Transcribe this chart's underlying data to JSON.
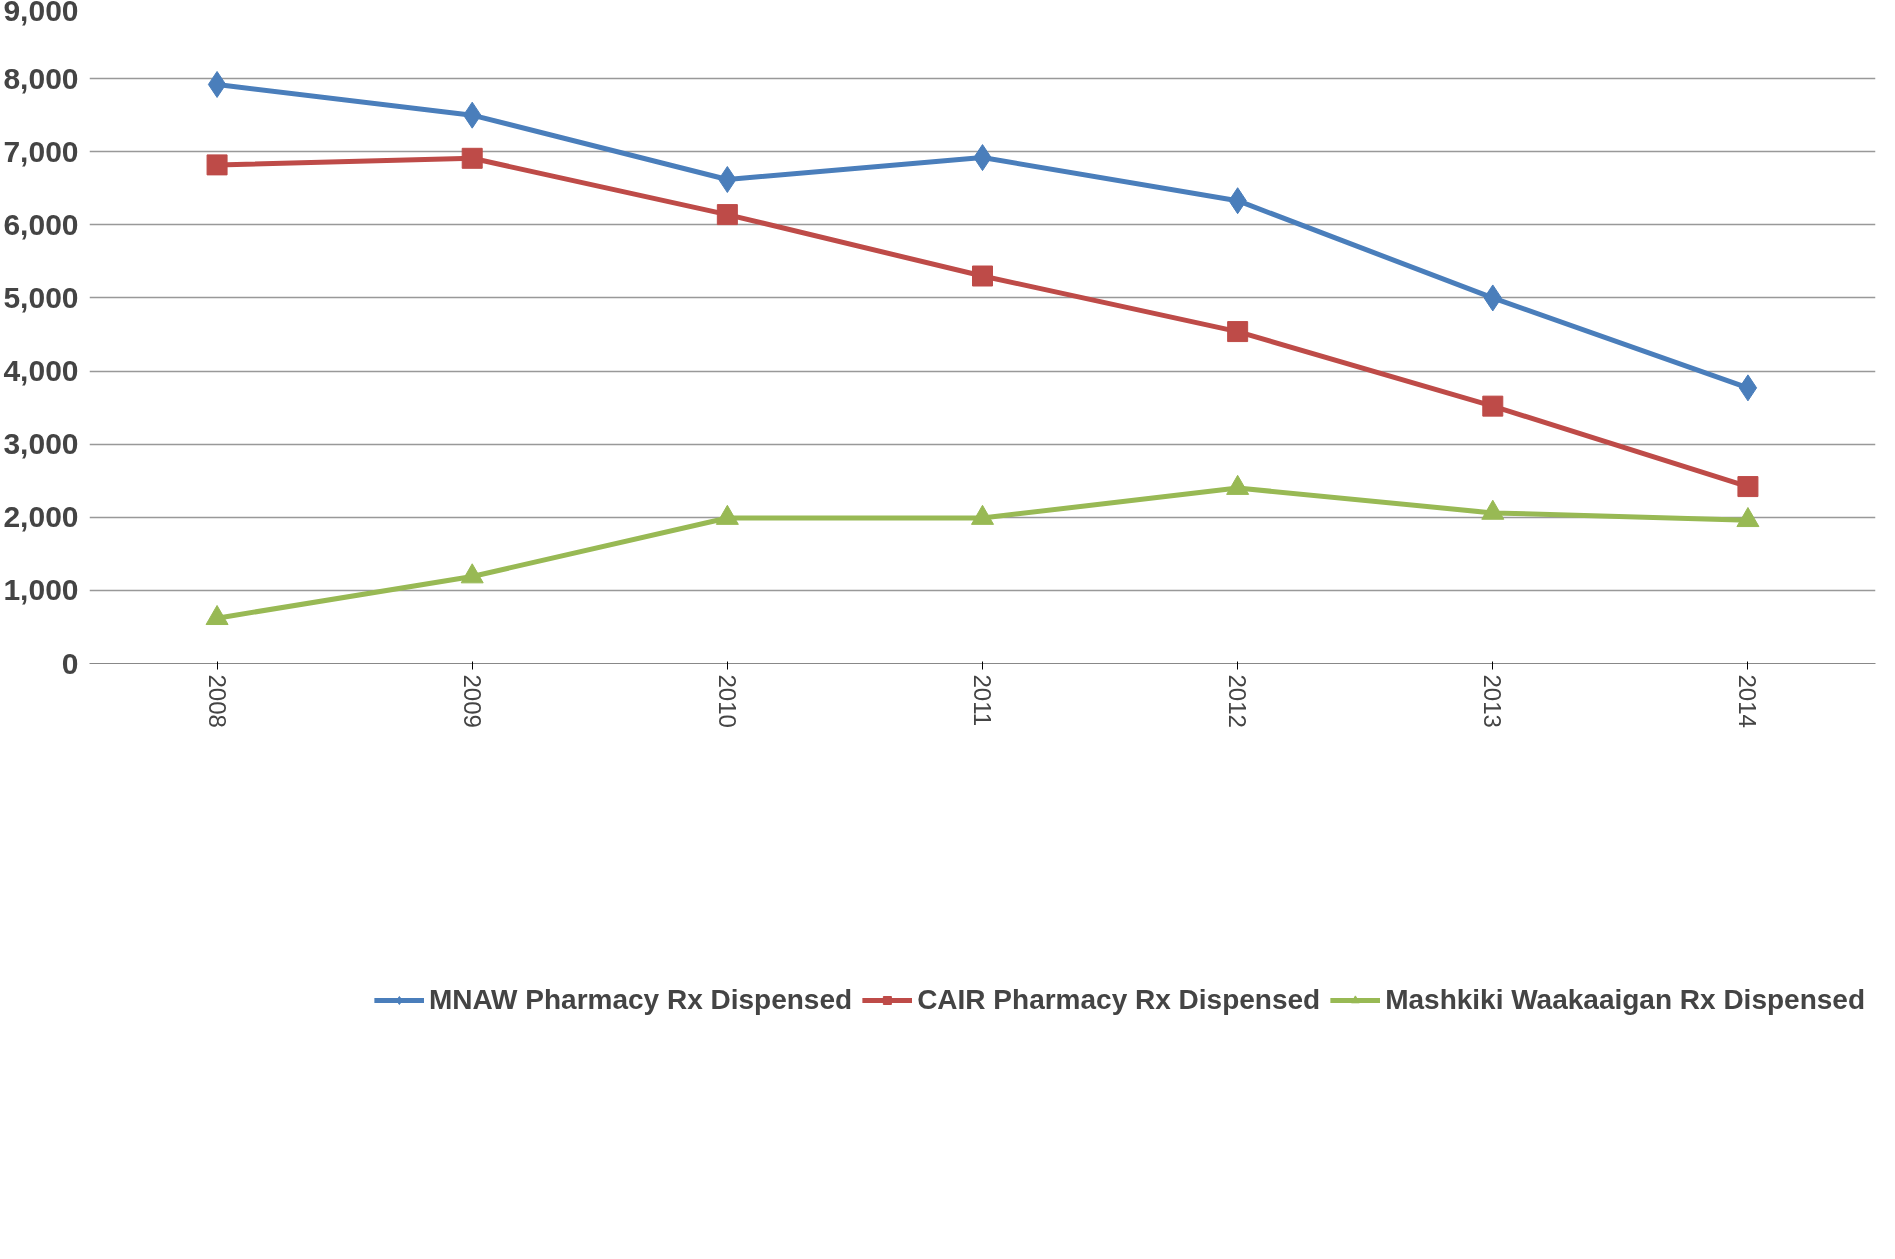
{
  "chart_data": {
    "type": "line",
    "categories": [
      "2008",
      "2009",
      "2010",
      "2011",
      "2012",
      "2013",
      "2014"
    ],
    "series": [
      {
        "name": "MNAW Pharmacy Rx Dispensed",
        "color": "#4a7ebb",
        "marker": "diamond",
        "values": [
          7920,
          7500,
          6620,
          6920,
          6330,
          5000,
          3770
        ]
      },
      {
        "name": "CAIR Pharmacy Rx Dispensed",
        "color": "#be4b48",
        "marker": "square",
        "values": [
          6820,
          6910,
          6140,
          5300,
          4540,
          3520,
          2420
        ]
      },
      {
        "name": "Mashkiki Waakaaigan Rx Dispensed",
        "color": "#98b954",
        "marker": "triangle",
        "values": [
          620,
          1190,
          1990,
          1990,
          2400,
          2060,
          1960
        ]
      }
    ],
    "ylim": [
      0,
      9000
    ],
    "yticks": [
      0,
      {
        "value": 1000,
        "label": "1,000"
      },
      {
        "value": 2000,
        "label": "2,000"
      },
      {
        "value": 3000,
        "label": "3,000"
      },
      {
        "value": 4000,
        "label": "4,000"
      },
      {
        "value": 5000,
        "label": "5,000"
      },
      {
        "value": 6000,
        "label": "6,000"
      },
      {
        "value": 7000,
        "label": "7,000"
      },
      {
        "value": 8000,
        "label": "8,000"
      },
      {
        "value": 9000,
        "label": "9,000"
      }
    ],
    "grid": "y",
    "legend": "bottom",
    "line_style": "solid"
  }
}
